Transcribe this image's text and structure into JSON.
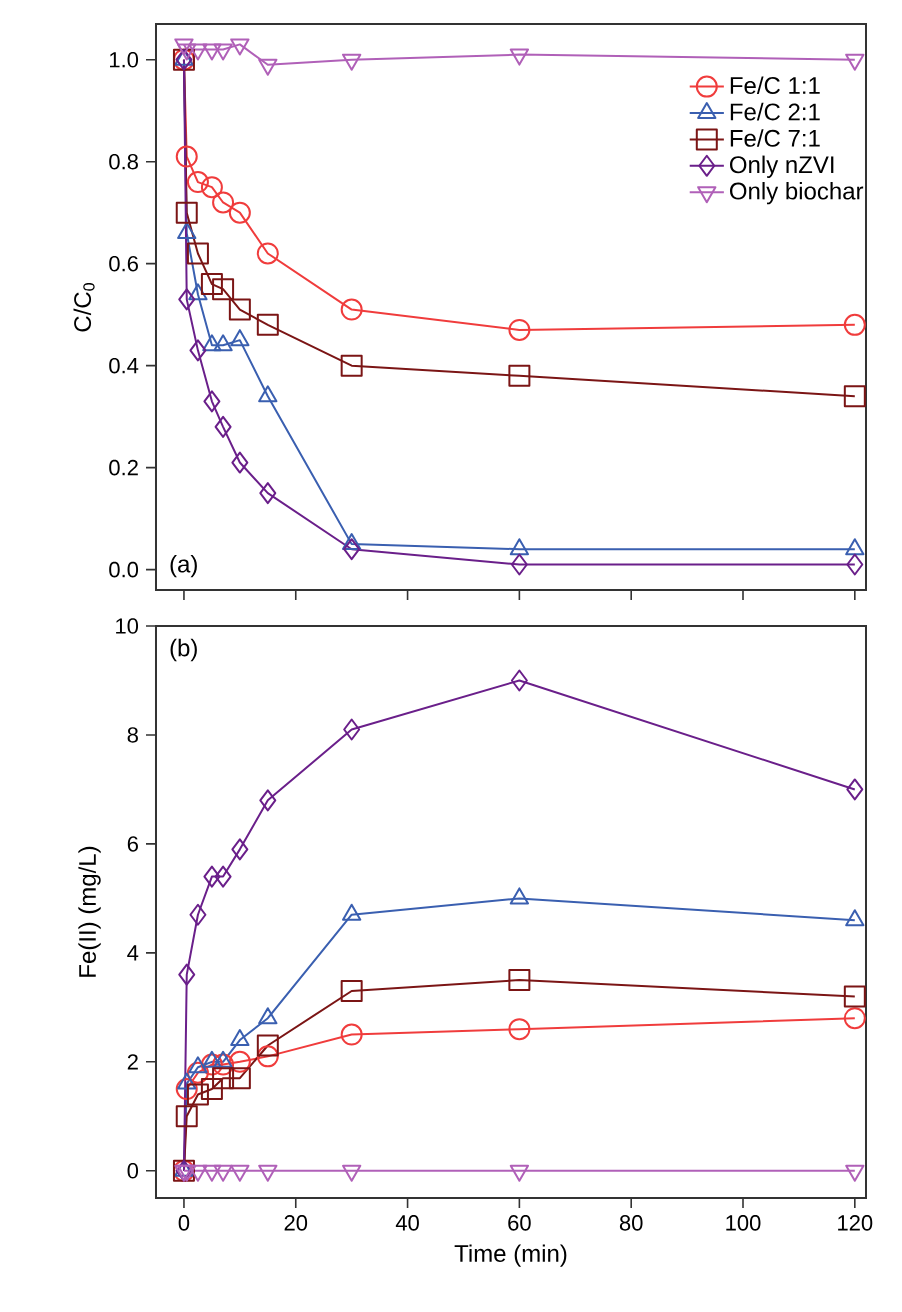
{
  "chart_data": [
    {
      "type": "line",
      "ylabel": "C/C$_{0}$",
      "annotations": [
        "(a)"
      ],
      "legend": "top right",
      "grid": false,
      "tick_labels": "y",
      "x": [
        0,
        0.5,
        2.5,
        5,
        7,
        10,
        15,
        30,
        60,
        120
      ],
      "xlim": [
        -5,
        122
      ],
      "xticks": [
        0,
        20,
        40,
        60,
        80,
        100,
        120
      ],
      "ylim": [
        -0.04,
        1.07
      ],
      "yticks": [
        {
          "value": 0,
          "label": "0.0"
        },
        0.2,
        0.4,
        0.6,
        0.8,
        {
          "value": 1,
          "label": "1.0"
        }
      ],
      "series": [
        {
          "name": "Fe/C 1:1",
          "color": "#f03c3c",
          "marker": "circle",
          "values": [
            1.0,
            0.81,
            0.76,
            0.75,
            0.72,
            0.7,
            0.62,
            0.51,
            0.47,
            0.48
          ]
        },
        {
          "name": "Fe/C 2:1",
          "color": "#3a5fb0",
          "marker": "triangle",
          "values": [
            1.0,
            0.66,
            0.54,
            0.44,
            0.44,
            0.45,
            0.34,
            0.05,
            0.04,
            0.04
          ]
        },
        {
          "name": "Fe/C 7:1",
          "color": "#7b1515",
          "marker": "square",
          "values": [
            1.0,
            0.7,
            0.62,
            0.56,
            0.55,
            0.51,
            0.48,
            0.4,
            0.38,
            0.34
          ]
        },
        {
          "name": "Only nZVI",
          "color": "#6a1f8a",
          "marker": "diamond",
          "values": [
            1.0,
            0.53,
            0.43,
            0.33,
            0.28,
            0.21,
            0.15,
            0.04,
            0.01,
            0.01
          ]
        },
        {
          "name": "Only biochar",
          "color": "#b060b8",
          "marker": "triangle_down",
          "values": [
            1.03,
            1.02,
            1.02,
            1.02,
            1.02,
            1.03,
            0.99,
            1.0,
            1.01,
            1.0
          ]
        }
      ]
    },
    {
      "type": "line",
      "xlabel": "Time (min)",
      "ylabel": "Fe(II) (mg/L)",
      "annotations": [
        "(b)"
      ],
      "grid": false,
      "x": [
        0,
        0.5,
        2.5,
        5,
        7,
        10,
        15,
        30,
        60,
        120
      ],
      "xlim": [
        -5,
        122
      ],
      "xticks": [
        0,
        20,
        40,
        60,
        80,
        100,
        120
      ],
      "ylim": [
        -0.5,
        10
      ],
      "yticks": [
        0,
        2,
        4,
        6,
        8,
        10
      ],
      "series": [
        {
          "color": "#f03c3c",
          "marker": "circle",
          "values": [
            0,
            1.5,
            1.8,
            1.95,
            1.95,
            2.0,
            2.1,
            2.5,
            2.6,
            2.8
          ]
        },
        {
          "color": "#3a5fb0",
          "marker": "triangle",
          "values": [
            0,
            1.6,
            1.9,
            2.0,
            2.0,
            2.4,
            2.8,
            4.7,
            5.0,
            4.6
          ]
        },
        {
          "color": "#7b1515",
          "marker": "square",
          "values": [
            0,
            1.0,
            1.4,
            1.5,
            1.7,
            1.7,
            2.3,
            3.3,
            3.5,
            3.2
          ]
        },
        {
          "color": "#6a1f8a",
          "marker": "diamond",
          "values": [
            0,
            3.6,
            4.7,
            5.4,
            5.4,
            5.9,
            6.8,
            8.1,
            9.0,
            7.0
          ]
        },
        {
          "color": "#b060b8",
          "marker": "triangle_down",
          "values": [
            0,
            0,
            0,
            0,
            0,
            0,
            0,
            0,
            0,
            0
          ]
        }
      ]
    }
  ]
}
